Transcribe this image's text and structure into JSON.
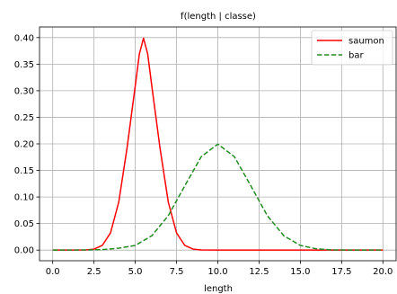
{
  "chart_data": {
    "type": "line",
    "title": "f(length | classe)",
    "xlabel": "length",
    "ylabel": "",
    "xlim": [
      -0.8,
      20.8
    ],
    "ylim": [
      -0.02,
      0.42
    ],
    "xticks": [
      0.0,
      2.5,
      5.0,
      7.5,
      10.0,
      12.5,
      15.0,
      17.5,
      20.0
    ],
    "xtick_labels": [
      "0.0",
      "2.5",
      "5.0",
      "7.5",
      "10.0",
      "12.5",
      "15.0",
      "17.5",
      "20.0"
    ],
    "yticks": [
      0.0,
      0.05,
      0.1,
      0.15,
      0.2,
      0.25,
      0.3,
      0.35,
      0.4
    ],
    "ytick_labels": [
      "0.00",
      "0.05",
      "0.10",
      "0.15",
      "0.20",
      "0.25",
      "0.30",
      "0.35",
      "0.40"
    ],
    "grid": true,
    "legend_position": "top-right",
    "series": [
      {
        "name": "saumon",
        "color": "#ff0000",
        "style": "solid",
        "x": [
          0,
          1,
          2,
          2.5,
          3,
          3.5,
          4,
          4.5,
          5,
          5.25,
          5.5,
          5.75,
          6,
          6.5,
          7,
          7.5,
          8,
          8.5,
          9,
          10,
          12,
          15,
          20
        ],
        "y": [
          0.0,
          0.0,
          0.0003,
          0.0018,
          0.0088,
          0.0324,
          0.0904,
          0.1918,
          0.3094,
          0.3696,
          0.3989,
          0.3696,
          0.3094,
          0.1918,
          0.0904,
          0.0324,
          0.0088,
          0.0018,
          0.0003,
          0.0,
          0.0,
          0.0,
          0.0
        ]
      },
      {
        "name": "bar",
        "color": "#228b22",
        "style": "dashed",
        "x": [
          0,
          2,
          3,
          4,
          5,
          6,
          7,
          8,
          9,
          10,
          11,
          12,
          13,
          14,
          15,
          16,
          17,
          18,
          20
        ],
        "y": [
          0.0,
          0.0003,
          0.0009,
          0.0036,
          0.0088,
          0.027,
          0.0648,
          0.121,
          0.176,
          0.1995,
          0.176,
          0.121,
          0.0648,
          0.027,
          0.0088,
          0.0022,
          0.0004,
          0.0001,
          0.0
        ]
      }
    ]
  }
}
